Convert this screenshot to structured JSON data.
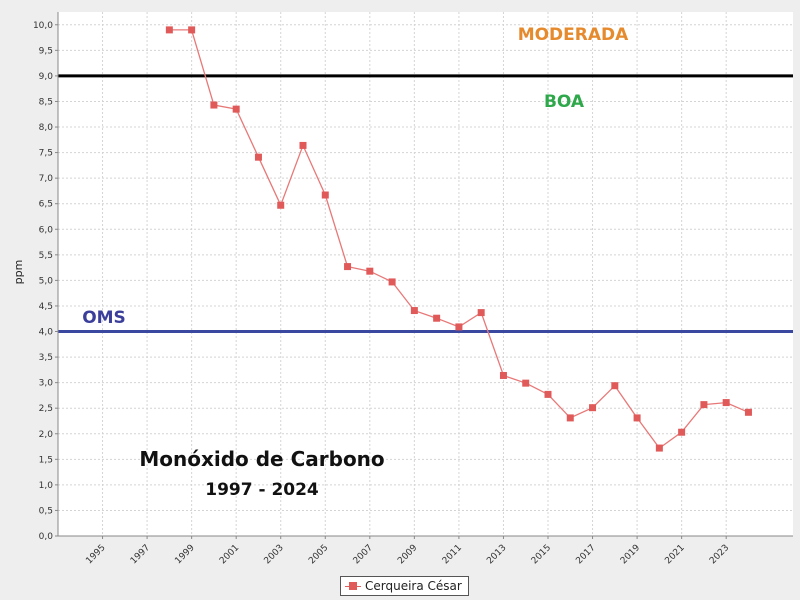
{
  "colors": {
    "series": "#e05a5a",
    "series_line": "#e87878",
    "moderada": "#e68a2e",
    "boa": "#2ea84a",
    "oms": "#3b3f9a",
    "limit_line": "#000000",
    "oms_line": "#3b48a0"
  },
  "chart_data": {
    "type": "line",
    "title": "Monóxido de Carbono",
    "subtitle": "1997 - 2024",
    "xlabel": "",
    "ylabel": "ppm",
    "xlim": [
      1993,
      2026
    ],
    "ylim": [
      0,
      10.25
    ],
    "grid": true,
    "legend_position": "bottom-center",
    "x_ticks": [
      "1995",
      "1997",
      "1999",
      "2001",
      "2003",
      "2005",
      "2007",
      "2009",
      "2011",
      "2013",
      "2015",
      "2017",
      "2019",
      "2021",
      "2023"
    ],
    "y_ticks": [
      "0,0",
      "0,5",
      "1,0",
      "1,5",
      "2,0",
      "2,5",
      "3,0",
      "3,5",
      "4,0",
      "4,5",
      "5,0",
      "5,5",
      "6,0",
      "6,5",
      "7,0",
      "7,5",
      "8,0",
      "8,5",
      "9,0",
      "9,5",
      "10,0"
    ],
    "series": [
      {
        "name": "Cerqueira César",
        "x": [
          1998,
          1999,
          2000,
          2001,
          2002,
          2003,
          2004,
          2005,
          2006,
          2007,
          2008,
          2009,
          2010,
          2011,
          2012,
          2013,
          2014,
          2015,
          2016,
          2017,
          2018,
          2019,
          2020,
          2021,
          2022,
          2023,
          2024
        ],
        "values": [
          9.9,
          9.9,
          8.43,
          8.35,
          7.41,
          6.47,
          7.64,
          6.67,
          5.27,
          5.18,
          4.97,
          4.41,
          4.26,
          4.09,
          4.37,
          3.14,
          2.99,
          2.77,
          2.31,
          2.51,
          2.94,
          2.31,
          1.72,
          2.03,
          2.57,
          2.61,
          2.42
        ]
      }
    ],
    "reference_lines": [
      {
        "name": "limit",
        "value": 9.0
      },
      {
        "name": "OMS",
        "value": 4.0
      }
    ],
    "annotations": {
      "moderada": "MODERADA",
      "boa": "BOA",
      "oms": "OMS"
    }
  }
}
